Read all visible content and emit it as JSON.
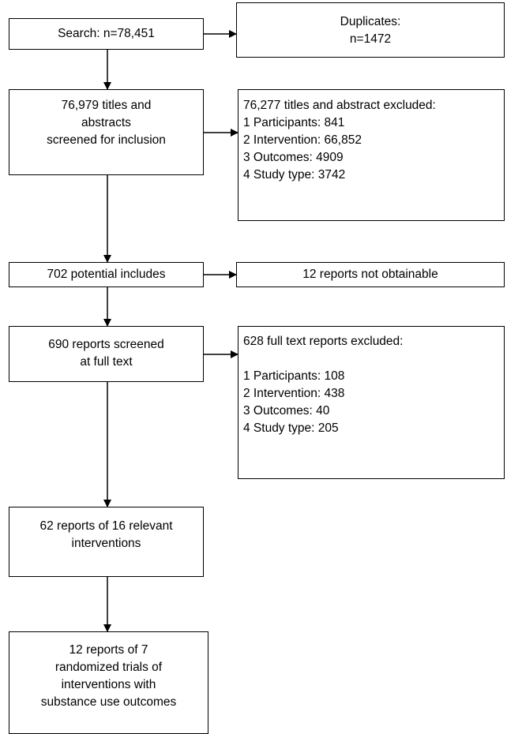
{
  "boxes": {
    "search": [
      "Search: n=78,451"
    ],
    "duplicates": [
      "Duplicates:",
      "n=1472"
    ],
    "screened": [
      "76,979 titles and",
      "abstracts",
      "screened for inclusion"
    ],
    "excluded_titles": [
      "76,277 titles and abstract excluded:",
      "1 Participants: 841",
      "2 Intervention: 66,852",
      "3 Outcomes: 4909",
      "4 Study type: 3742"
    ],
    "potential": [
      "702 potential includes"
    ],
    "not_obtainable": [
      "12 reports not obtainable"
    ],
    "fulltext": [
      "690 reports screened",
      "at full text"
    ],
    "excluded_fulltext": [
      "628 full text reports excluded:",
      "1 Participants: 108",
      "2 Intervention: 438",
      "3 Outcomes: 40",
      "4 Study type: 205"
    ],
    "relevant": [
      "62 reports of 16 relevant",
      "interventions"
    ],
    "final": [
      "12 reports of 7",
      "randomized trials of",
      "interventions with",
      "substance use outcomes"
    ]
  }
}
